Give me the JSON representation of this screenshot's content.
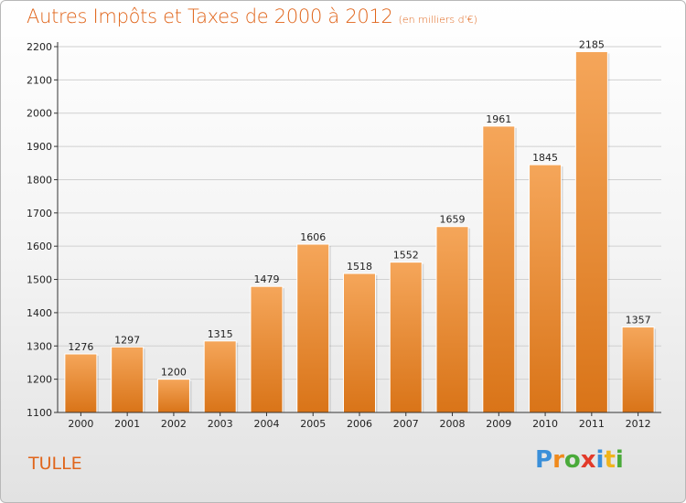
{
  "header": {
    "title": "Autres Impôts et Taxes de 2000 à 2012",
    "subtitle": "(en milliers d'€)"
  },
  "footer": {
    "city": "TULLE",
    "logo": {
      "text": "Proxiti",
      "letters": [
        {
          "char": "P",
          "color": "#3a8fd9"
        },
        {
          "char": "r",
          "color": "#f08a1c"
        },
        {
          "char": "o",
          "color": "#4aaa3a"
        },
        {
          "char": "x",
          "color": "#e23a2a"
        },
        {
          "char": "i",
          "color": "#3a8fd9"
        },
        {
          "char": "t",
          "color": "#f0b41c"
        },
        {
          "char": "i",
          "color": "#4aaa3a"
        }
      ]
    }
  },
  "colors": {
    "bar_top": "#f5a65a",
    "bar_bottom": "#d97418",
    "accent": "#e0651b",
    "grid": "#d0d0d0"
  },
  "chart_data": {
    "type": "bar",
    "title": "Autres Impôts et Taxes de 2000 à 2012",
    "subtitle": "(en milliers d'€)",
    "categories": [
      "2000",
      "2001",
      "2002",
      "2003",
      "2004",
      "2005",
      "2006",
      "2007",
      "2008",
      "2009",
      "2010",
      "2011",
      "2012"
    ],
    "values": [
      1276,
      1297,
      1200,
      1315,
      1479,
      1606,
      1518,
      1552,
      1659,
      1961,
      1845,
      2185,
      1357
    ],
    "ylim": [
      1100,
      2200
    ],
    "yticks": [
      1100,
      1200,
      1300,
      1400,
      1500,
      1600,
      1700,
      1800,
      1900,
      2000,
      2100,
      2200
    ],
    "xlabel": "",
    "ylabel": "",
    "grid": true,
    "data_labels": true
  }
}
